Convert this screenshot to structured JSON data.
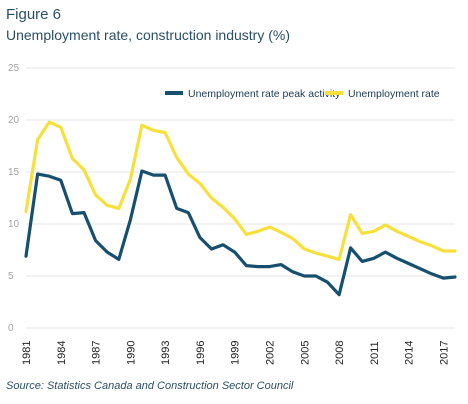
{
  "figure": {
    "label": "Figure 6",
    "title": "Unemployment rate, construction industry (%)",
    "source": "Source: Statistics Canada and Construction Sector Council"
  },
  "chart_data": {
    "type": "line",
    "title": "Unemployment rate, construction industry (%)",
    "xlabel": "",
    "ylabel": "",
    "ylim": [
      0,
      25
    ],
    "yticks": [
      0,
      5,
      10,
      15,
      20,
      25
    ],
    "xticks": [
      1981,
      1984,
      1987,
      1990,
      1993,
      1996,
      1999,
      2002,
      2005,
      2008,
      2011,
      2014,
      2017
    ],
    "grid": "horizontal",
    "legend": "top-right",
    "x": [
      1981,
      1982,
      1983,
      1984,
      1985,
      1986,
      1987,
      1988,
      1989,
      1990,
      1991,
      1992,
      1993,
      1994,
      1995,
      1996,
      1997,
      1998,
      1999,
      2000,
      2001,
      2002,
      2003,
      2004,
      2005,
      2006,
      2007,
      2008,
      2009,
      2010,
      2011,
      2012,
      2013,
      2014,
      2015,
      2016,
      2017,
      2018
    ],
    "series": [
      {
        "name": "Unemployment rate peak activity",
        "color": "#17506e",
        "values": [
          6.9,
          14.8,
          14.6,
          14.2,
          11.0,
          11.1,
          8.4,
          7.3,
          6.6,
          10.4,
          15.1,
          14.7,
          14.7,
          11.5,
          11.1,
          8.7,
          7.6,
          8.0,
          7.3,
          6.0,
          5.9,
          5.9,
          6.1,
          5.4,
          5.0,
          5.0,
          4.4,
          3.2,
          7.7,
          6.4,
          6.7,
          7.3,
          6.7,
          6.2,
          5.7,
          5.2,
          4.8,
          4.9
        ]
      },
      {
        "name": "Unemployment rate",
        "color": "#f7e03c",
        "values": [
          11.2,
          18.1,
          19.8,
          19.3,
          16.3,
          15.2,
          12.8,
          11.8,
          11.5,
          14.3,
          19.5,
          19.0,
          18.8,
          16.4,
          14.8,
          13.9,
          12.5,
          11.6,
          10.5,
          9.0,
          9.3,
          9.7,
          9.2,
          8.6,
          7.6,
          7.2,
          6.9,
          6.6,
          10.9,
          9.1,
          9.3,
          9.9,
          9.3,
          8.8,
          8.3,
          7.9,
          7.4,
          7.4
        ]
      }
    ]
  }
}
